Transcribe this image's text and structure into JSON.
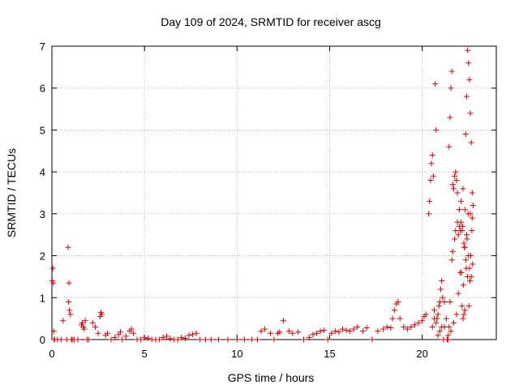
{
  "chart_data": {
    "type": "scatter",
    "title": "Day 109 of 2024, SRMTID for receiver ascg",
    "xlabel": "GPS time / hours",
    "ylabel": "SRMTID / TECUs",
    "xlim": [
      0,
      24
    ],
    "ylim": [
      0,
      7
    ],
    "xticks": [
      0,
      5,
      10,
      15,
      20
    ],
    "yticks": [
      0,
      1,
      2,
      3,
      4,
      5,
      6,
      7
    ],
    "grid": true,
    "marker": "+",
    "marker_color": "#dd0000",
    "series": [
      {
        "name": "SRMTID",
        "x": [
          0.02,
          0.05,
          0.08,
          0.1,
          0.12,
          0.15,
          0.3,
          0.5,
          0.6,
          0.8,
          0.9,
          0.95,
          1.0,
          1.05,
          1.1,
          0.88,
          0.92,
          1.2,
          1.4,
          1.6,
          1.65,
          1.7,
          1.75,
          1.8,
          1.9,
          2.0,
          2.2,
          2.35,
          2.5,
          2.6,
          2.65,
          2.7,
          2.9,
          3.0,
          3.2,
          3.4,
          3.6,
          3.7,
          3.8,
          4.0,
          4.2,
          4.3,
          4.4,
          4.6,
          4.8,
          5.0,
          5.2,
          5.4,
          5.6,
          5.8,
          6.0,
          6.2,
          6.4,
          6.6,
          6.8,
          7.0,
          7.2,
          7.4,
          7.6,
          7.8,
          8.0,
          8.3,
          8.6,
          9.0,
          9.5,
          10.0,
          10.4,
          10.8,
          11.1,
          11.3,
          11.5,
          11.8,
          12.0,
          12.2,
          12.3,
          12.5,
          12.8,
          13.0,
          13.3,
          13.6,
          13.9,
          14.1,
          14.3,
          14.5,
          14.7,
          14.9,
          15.1,
          15.3,
          15.5,
          15.7,
          15.9,
          16.1,
          16.3,
          16.5,
          16.8,
          17.0,
          17.3,
          17.6,
          17.9,
          18.1,
          18.3,
          18.4,
          18.5,
          18.6,
          18.7,
          18.8,
          19.0,
          19.2,
          19.4,
          19.6,
          19.8,
          20.0,
          20.1,
          20.2,
          20.35,
          20.4,
          20.45,
          20.5,
          20.55,
          20.6,
          20.65,
          20.7,
          20.75,
          20.8,
          20.85,
          20.9,
          20.95,
          21.0,
          21.05,
          21.1,
          21.15,
          21.2,
          21.3,
          21.4,
          21.45,
          21.5,
          21.55,
          21.6,
          21.65,
          21.7,
          21.75,
          21.8,
          21.85,
          21.9,
          21.95,
          22.0,
          22.05,
          22.1,
          22.15,
          22.2,
          22.25,
          22.3,
          22.35,
          22.4,
          22.45,
          22.5,
          22.55,
          22.6,
          22.65,
          22.7,
          22.75,
          21.35,
          21.45,
          21.5,
          21.6,
          21.65,
          21.75,
          21.8,
          21.9,
          22.0,
          22.1,
          22.2,
          22.3,
          22.4,
          22.5,
          22.6,
          22.7,
          22.72,
          22.65,
          22.55,
          22.45,
          22.35,
          22.25,
          22.15,
          22.05,
          21.95,
          21.85,
          21.7,
          21.55,
          21.4,
          21.2,
          21.05,
          20.95,
          20.85,
          20.75,
          20.65,
          20.55,
          22.68,
          22.62,
          22.58,
          22.52,
          22.48,
          22.42,
          22.38,
          22.32,
          22.28,
          22.22,
          22.18,
          22.12
        ],
        "y": [
          1.4,
          1.7,
          1.35,
          0.2,
          0.0,
          0.0,
          0.0,
          0.0,
          0.45,
          0.0,
          0.9,
          0.7,
          0.6,
          0.0,
          0.0,
          2.2,
          1.35,
          0.0,
          0.0,
          0.35,
          0.4,
          0.3,
          0.25,
          0.45,
          0.0,
          0.0,
          0.4,
          0.3,
          0.15,
          0.55,
          0.65,
          0.6,
          0.1,
          0.15,
          0.0,
          0.05,
          0.12,
          0.18,
          0.0,
          0.08,
          0.2,
          0.25,
          0.15,
          0.0,
          0.0,
          0.05,
          0.03,
          0.0,
          0.0,
          0.0,
          0.05,
          0.08,
          0.02,
          0.0,
          0.0,
          0.05,
          0.03,
          0.1,
          0.12,
          0.15,
          0.0,
          0.0,
          0.0,
          0.0,
          0.0,
          0.0,
          0.0,
          0.0,
          0.0,
          0.2,
          0.25,
          0.15,
          0.0,
          0.15,
          0.18,
          0.45,
          0.2,
          0.15,
          0.18,
          0.0,
          0.05,
          0.12,
          0.15,
          0.2,
          0.22,
          0.0,
          0.15,
          0.2,
          0.18,
          0.25,
          0.22,
          0.2,
          0.25,
          0.3,
          0.2,
          0.28,
          0.0,
          0.2,
          0.25,
          0.3,
          0.28,
          0.5,
          0.7,
          0.85,
          0.9,
          0.5,
          0.3,
          0.25,
          0.3,
          0.35,
          0.4,
          0.45,
          0.55,
          0.6,
          3.0,
          3.3,
          3.8,
          4.2,
          4.4,
          3.9,
          0.7,
          6.1,
          5.0,
          0.5,
          0.6,
          0.8,
          0.9,
          1.2,
          1.4,
          1.0,
          0.0,
          0.3,
          0.5,
          0.0,
          4.6,
          5.3,
          6.0,
          6.4,
          3.7,
          3.6,
          3.9,
          4.0,
          3.8,
          3.5,
          2.5,
          2.7,
          2.6,
          2.8,
          0.8,
          0.5,
          0.6,
          0.7,
          4.9,
          5.8,
          6.9,
          6.6,
          6.2,
          5.4,
          4.7,
          3.5,
          3.2,
          0.0,
          0.3,
          0.9,
          1.9,
          2.1,
          2.4,
          2.6,
          2.8,
          3.1,
          3.3,
          3.6,
          2.2,
          2.5,
          2.0,
          3.0,
          2.9,
          1.8,
          1.5,
          1.7,
          1.5,
          1.9,
          2.3,
          2.6,
          1.6,
          1.1,
          0.6,
          0.4,
          0.2,
          0.1,
          0.9,
          0.3,
          0.2,
          0.1,
          0.4,
          0.5,
          0.3,
          2.6,
          2.0,
          1.4,
          0.8,
          3.0,
          2.4,
          1.7,
          3.1,
          2.2,
          1.3,
          2.7,
          1.6
        ]
      }
    ]
  }
}
